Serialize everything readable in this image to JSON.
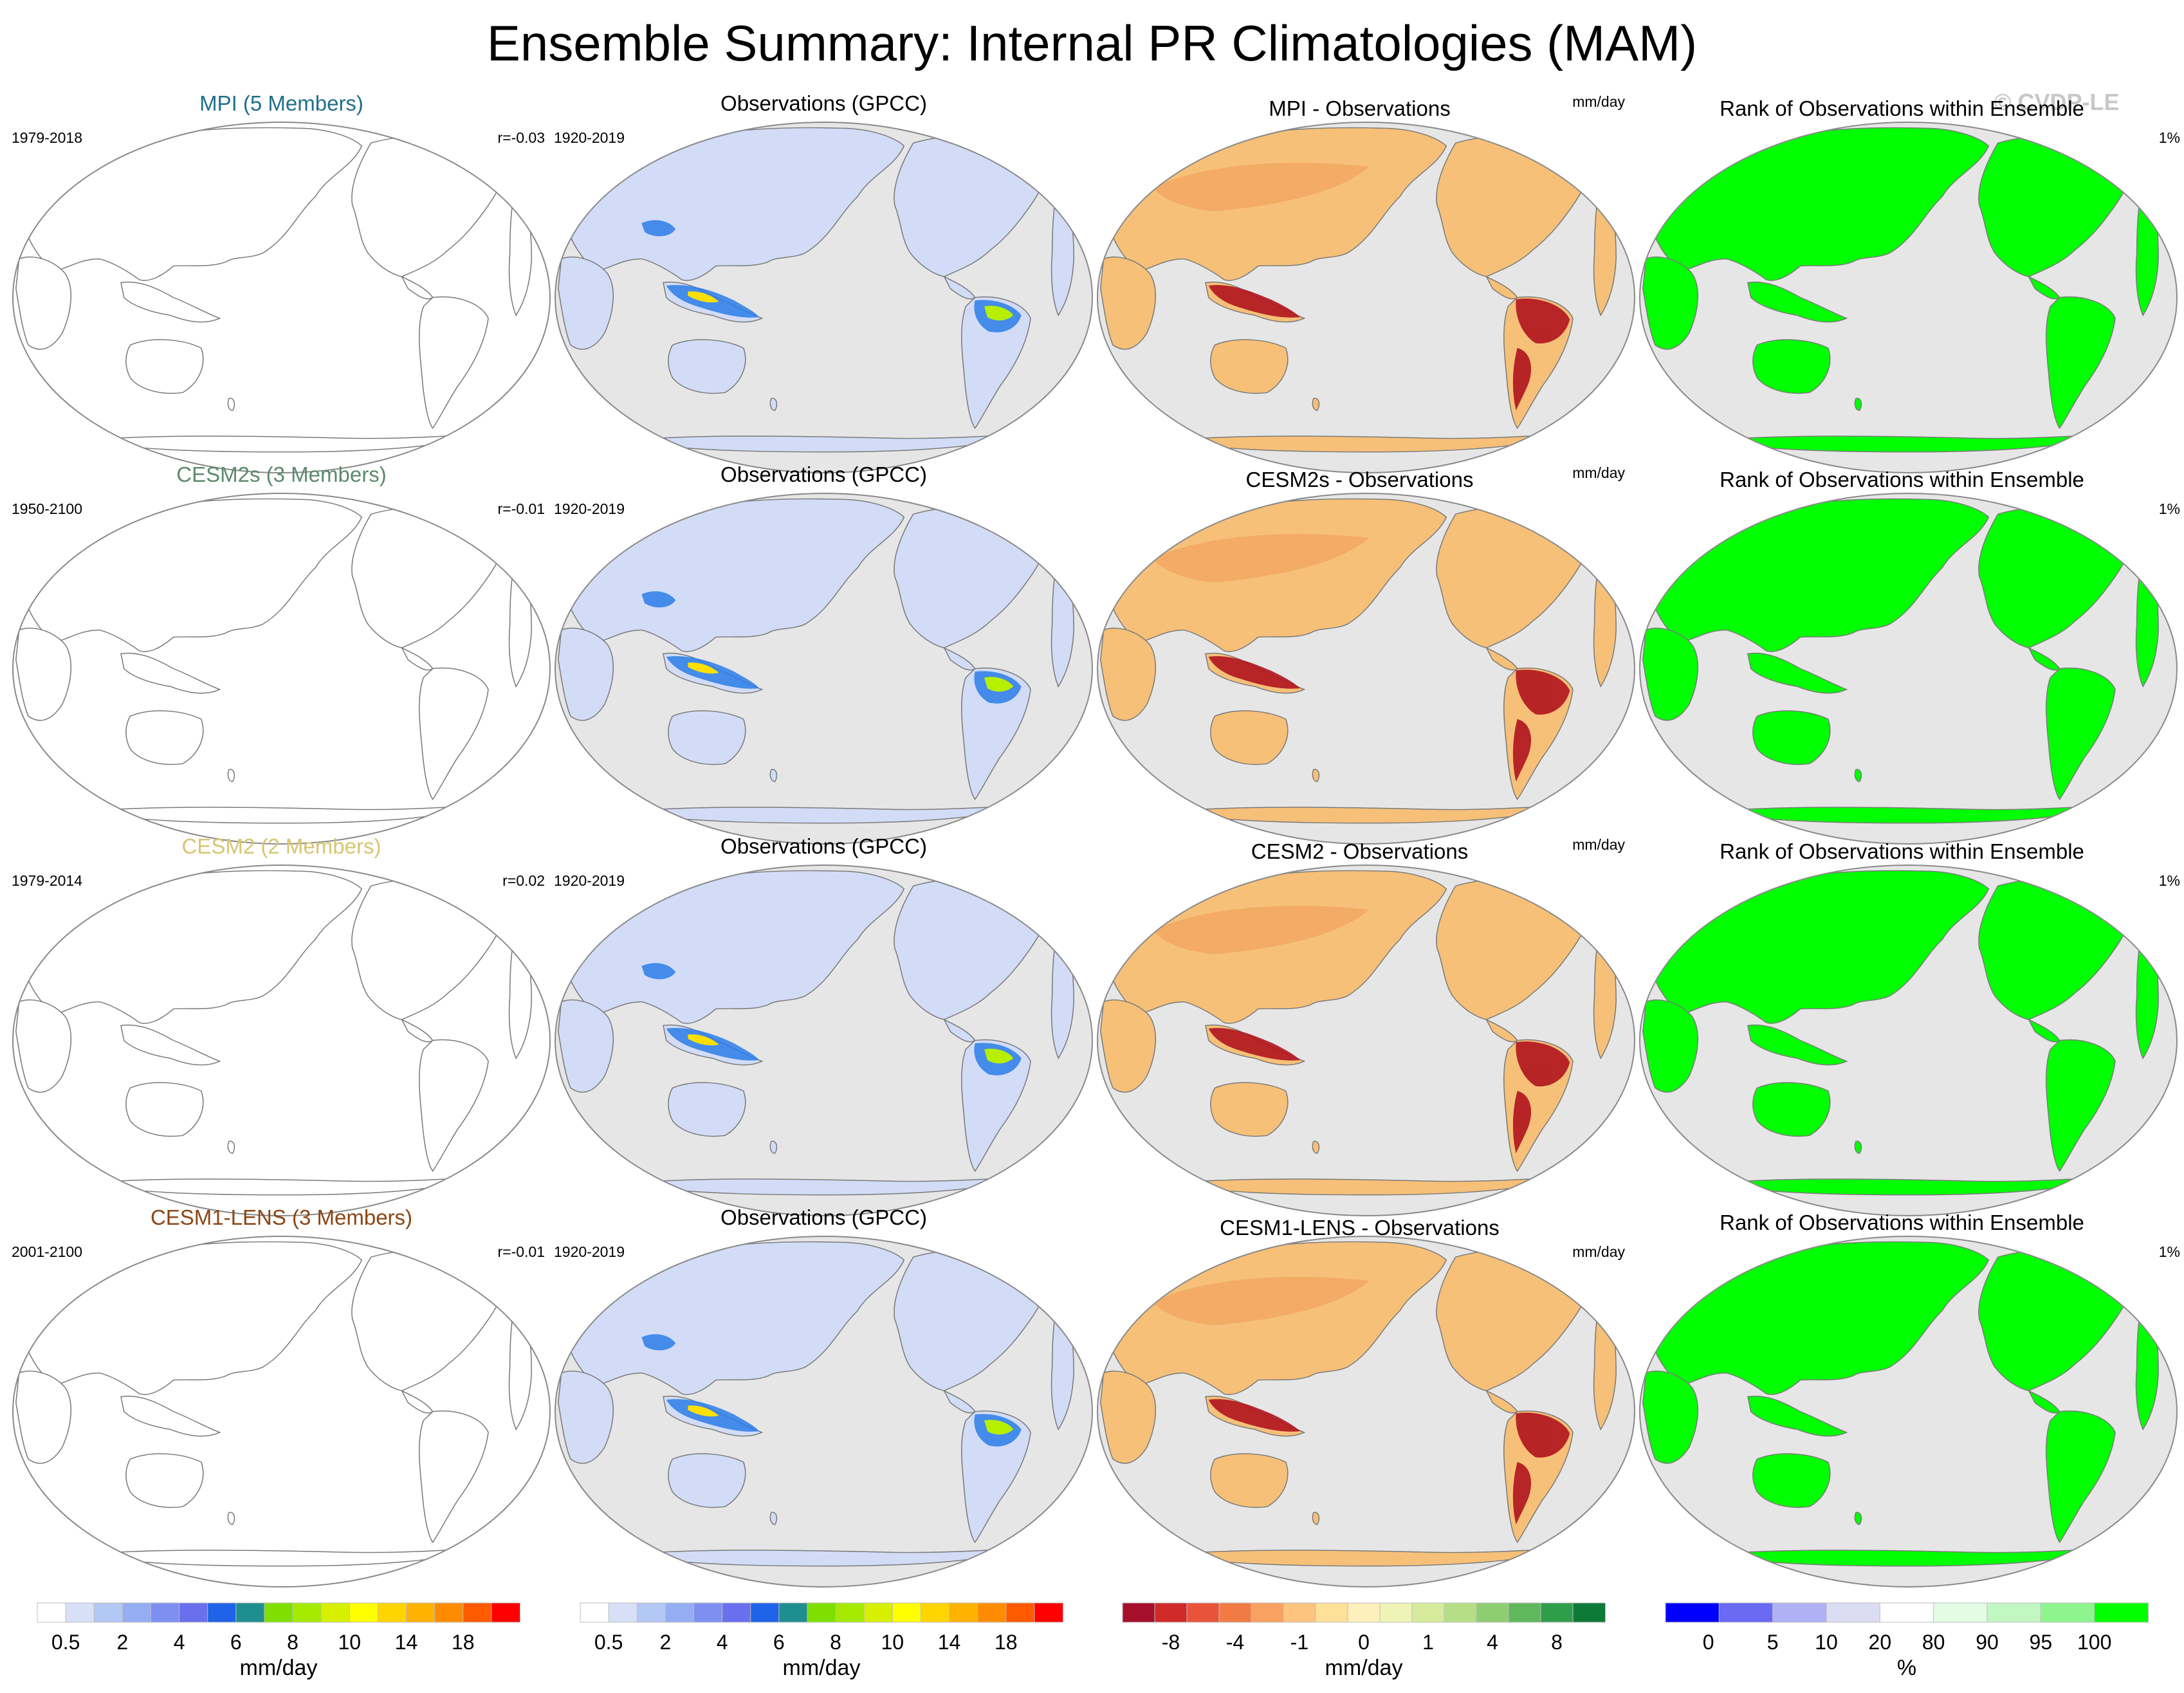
{
  "title": "Ensemble Summary: Internal PR Climatologies (MAM)",
  "copyright": "© CVDP-LE",
  "rows": [
    {
      "model": "MPI (5 Members)",
      "model_color": "#1f6f8b",
      "model_years": "1979-2018",
      "corr": "r=-0.03",
      "obs_title": "Observations (GPCC)",
      "obs_years": "1920-2019",
      "diff_title": "MPI - Observations",
      "diff_units": "mm/day",
      "rank_title": "Rank of Observations within Ensemble",
      "rank_pct": "1%"
    },
    {
      "model": "CESM2s (3 Members)",
      "model_color": "#5b8a6e",
      "model_years": "1950-2100",
      "corr": "r=-0.01",
      "obs_title": "Observations (GPCC)",
      "obs_years": "1920-2019",
      "diff_title": "CESM2s - Observations",
      "diff_units": "mm/day",
      "rank_title": "Rank of Observations within Ensemble",
      "rank_pct": "1%"
    },
    {
      "model": "CESM2 (2 Members)",
      "model_color": "#d8c570",
      "model_years": "1979-2014",
      "corr": "r=0.02",
      "obs_title": "Observations (GPCC)",
      "obs_years": "1920-2019",
      "diff_title": "CESM2 - Observations",
      "diff_units": "mm/day",
      "rank_title": "Rank of Observations within Ensemble",
      "rank_pct": "1%"
    },
    {
      "model": "CESM1-LENS (3 Members)",
      "model_color": "#8b4513",
      "model_years": "2001-2100",
      "corr": "r=-0.01",
      "obs_title": "Observations (GPCC)",
      "obs_years": "1920-2019",
      "diff_title": "CESM1-LENS - Observations",
      "diff_units": "mm/day",
      "rank_title": "Rank of Observations within Ensemble",
      "rank_pct": "1%"
    }
  ],
  "colorbars": [
    {
      "name": "pr",
      "colors": [
        "#ffffff",
        "#d7e0f7",
        "#b4c8f5",
        "#95adf2",
        "#7d8ff0",
        "#6a6fee",
        "#1f64e8",
        "#1e8f8f",
        "#7fe000",
        "#a5ea00",
        "#d6f000",
        "#ffff00",
        "#ffd400",
        "#ffb300",
        "#ff8c00",
        "#ff5a00",
        "#ff0000"
      ],
      "labels": [
        "0.5",
        "2",
        "4",
        "6",
        "8",
        "10",
        "14",
        "18"
      ],
      "units": "mm/day"
    },
    {
      "name": "pr-obs",
      "colors": [
        "#ffffff",
        "#d7e0f7",
        "#b4c8f5",
        "#95adf2",
        "#7d8ff0",
        "#6a6fee",
        "#1f64e8",
        "#1e8f8f",
        "#7fe000",
        "#a5ea00",
        "#d6f000",
        "#ffff00",
        "#ffd400",
        "#ffb300",
        "#ff8c00",
        "#ff5a00",
        "#ff0000"
      ],
      "labels": [
        "0.5",
        "2",
        "4",
        "6",
        "8",
        "10",
        "14",
        "18"
      ],
      "units": "mm/day"
    },
    {
      "name": "diff",
      "colors": [
        "#a50f2a",
        "#d02a2a",
        "#e9533a",
        "#f27b45",
        "#f8a160",
        "#fcc47f",
        "#fde09a",
        "#fdf0bd",
        "#eef4b6",
        "#d5eb9b",
        "#b6de86",
        "#8fcd72",
        "#60b85c",
        "#2f9e4a",
        "#0d7a38"
      ],
      "labels": [
        "-8",
        "-4",
        "-1",
        "0",
        "1",
        "4",
        "8"
      ],
      "units": "mm/day"
    },
    {
      "name": "rank",
      "colors": [
        "#0000ff",
        "#6a6af5",
        "#b0b0f5",
        "#dcdcf5",
        "#ffffff",
        "#e4fbe4",
        "#c2f7c2",
        "#8ef58e",
        "#00ff00"
      ],
      "labels": [
        "0",
        "5",
        "10",
        "20",
        "80",
        "90",
        "95",
        "100"
      ],
      "units": "%"
    }
  ],
  "panel_colors": {
    "ocean": "#e6e6e6",
    "coast": "#7a7a7a",
    "obs_land": "#d2dcf7",
    "diff_land": "#f6c078",
    "rank_land": "#00ff00"
  }
}
